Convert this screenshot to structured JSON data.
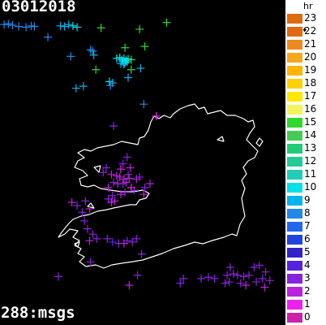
{
  "header": {
    "date": "03012018"
  },
  "footer": {
    "count": "288:msgs"
  },
  "legend": {
    "title": "hr",
    "current_hour": "22",
    "items": [
      {
        "label": "23",
        "color": "#e06a10"
      },
      {
        "label": "22",
        "color": "#e06a10"
      },
      {
        "label": "21",
        "color": "#ec8a20"
      },
      {
        "label": "20",
        "color": "#f6a81c"
      },
      {
        "label": "19",
        "color": "#ffb400"
      },
      {
        "label": "18",
        "color": "#ffd000"
      },
      {
        "label": "17",
        "color": "#ffe800"
      },
      {
        "label": "16",
        "color": "#f4f45a"
      },
      {
        "label": "15",
        "color": "#30d830"
      },
      {
        "label": "14",
        "color": "#44cc55"
      },
      {
        "label": "13",
        "color": "#22cc77"
      },
      {
        "label": "12",
        "color": "#22cc99"
      },
      {
        "label": "11",
        "color": "#22ccbb"
      },
      {
        "label": "10",
        "color": "#00e0e8"
      },
      {
        "label": "9",
        "color": "#00b4f0"
      },
      {
        "label": "8",
        "color": "#2288e8"
      },
      {
        "label": "7",
        "color": "#2266ee"
      },
      {
        "label": "6",
        "color": "#2244dd"
      },
      {
        "label": "5",
        "color": "#3322cc"
      },
      {
        "label": "4",
        "color": "#5522dd"
      },
      {
        "label": "3",
        "color": "#8822dd"
      },
      {
        "label": "2",
        "color": "#bb22dd"
      },
      {
        "label": "1",
        "color": "#ee22ee"
      },
      {
        "label": "0",
        "color": "#cc22aa"
      }
    ]
  },
  "strikes": [
    {
      "lon": -14.3,
      "lat": 55.38,
      "hour": 8
    },
    {
      "lon": -14.1,
      "lat": 55.39,
      "hour": 8
    },
    {
      "lon": -13.9,
      "lat": 55.37,
      "hour": 8
    },
    {
      "lon": -13.6,
      "lat": 55.35,
      "hour": 8
    },
    {
      "lon": -13.25,
      "lat": 55.34,
      "hour": 8
    },
    {
      "lon": -13.0,
      "lat": 55.36,
      "hour": 8
    },
    {
      "lon": -12.85,
      "lat": 55.35,
      "hour": 8
    },
    {
      "lon": -12.2,
      "lat": 55.19,
      "hour": 8
    },
    {
      "lon": -11.6,
      "lat": 55.36,
      "hour": 9
    },
    {
      "lon": -11.4,
      "lat": 55.35,
      "hour": 9
    },
    {
      "lon": -11.2,
      "lat": 55.38,
      "hour": 9
    },
    {
      "lon": -11.0,
      "lat": 55.36,
      "hour": 10
    },
    {
      "lon": -10.8,
      "lat": 55.34,
      "hour": 10
    },
    {
      "lon": -9.65,
      "lat": 55.33,
      "hour": 15
    },
    {
      "lon": -7.8,
      "lat": 55.31,
      "hour": 15
    },
    {
      "lon": -6.5,
      "lat": 55.41,
      "hour": 15
    },
    {
      "lon": -10.15,
      "lat": 55.0,
      "hour": 8
    },
    {
      "lon": -10.05,
      "lat": 54.98,
      "hour": 8
    },
    {
      "lon": -10.0,
      "lat": 54.92,
      "hour": 9
    },
    {
      "lon": -11.1,
      "lat": 54.9,
      "hour": 8
    },
    {
      "lon": -8.5,
      "lat": 55.03,
      "hour": 15
    },
    {
      "lon": -7.55,
      "lat": 55.05,
      "hour": 15
    },
    {
      "lon": -8.9,
      "lat": 54.87,
      "hour": 10
    },
    {
      "lon": -8.75,
      "lat": 54.88,
      "hour": 10
    },
    {
      "lon": -8.65,
      "lat": 54.85,
      "hour": 10
    },
    {
      "lon": -8.55,
      "lat": 54.87,
      "hour": 10
    },
    {
      "lon": -8.45,
      "lat": 54.84,
      "hour": 10
    },
    {
      "lon": -8.35,
      "lat": 54.86,
      "hour": 10
    },
    {
      "lon": -8.6,
      "lat": 54.82,
      "hour": 10
    },
    {
      "lon": -8.5,
      "lat": 54.8,
      "hour": 10
    },
    {
      "lon": -8.4,
      "lat": 54.82,
      "hour": 10
    },
    {
      "lon": -8.7,
      "lat": 54.79,
      "hour": 9
    },
    {
      "lon": -8.55,
      "lat": 54.78,
      "hour": 9
    },
    {
      "lon": -8.2,
      "lat": 54.85,
      "hour": 15
    },
    {
      "lon": -9.9,
      "lat": 54.7,
      "hour": 15
    },
    {
      "lon": -8.2,
      "lat": 54.7,
      "hour": 15
    },
    {
      "lon": -7.75,
      "lat": 54.72,
      "hour": 9
    },
    {
      "lon": -9.25,
      "lat": 54.52,
      "hour": 10
    },
    {
      "lon": -9.1,
      "lat": 54.5,
      "hour": 9
    },
    {
      "lon": -9.2,
      "lat": 54.46,
      "hour": 8
    },
    {
      "lon": -8.35,
      "lat": 54.58,
      "hour": 9
    },
    {
      "lon": -10.5,
      "lat": 54.45,
      "hour": 9
    },
    {
      "lon": -10.85,
      "lat": 54.42,
      "hour": 9
    },
    {
      "lon": -7.6,
      "lat": 54.18,
      "hour": 8
    },
    {
      "lon": -7.0,
      "lat": 54.0,
      "hour": 1
    },
    {
      "lon": -9.05,
      "lat": 53.85,
      "hour": 3
    },
    {
      "lon": -8.4,
      "lat": 53.38,
      "hour": 3
    },
    {
      "lon": -8.6,
      "lat": 53.28,
      "hour": 3
    },
    {
      "lon": -8.7,
      "lat": 53.2,
      "hour": 1
    },
    {
      "lon": -8.25,
      "lat": 53.22,
      "hour": 2
    },
    {
      "lon": -9.4,
      "lat": 53.22,
      "hour": 3
    },
    {
      "lon": -9.55,
      "lat": 53.15,
      "hour": 3
    },
    {
      "lon": -9.15,
      "lat": 53.12,
      "hour": 2
    },
    {
      "lon": -8.9,
      "lat": 53.1,
      "hour": 2
    },
    {
      "lon": -8.75,
      "lat": 53.08,
      "hour": 2
    },
    {
      "lon": -8.55,
      "lat": 53.05,
      "hour": 2
    },
    {
      "lon": -8.3,
      "lat": 53.06,
      "hour": 2
    },
    {
      "lon": -8.45,
      "lat": 53.0,
      "hour": 2
    },
    {
      "lon": -8.6,
      "lat": 52.98,
      "hour": 3
    },
    {
      "lon": -8.85,
      "lat": 52.98,
      "hour": 2
    },
    {
      "lon": -9.05,
      "lat": 53.0,
      "hour": 3
    },
    {
      "lon": -9.3,
      "lat": 52.92,
      "hour": 2
    },
    {
      "lon": -8.35,
      "lat": 53.12,
      "hour": 3
    },
    {
      "lon": -7.95,
      "lat": 53.05,
      "hour": 2
    },
    {
      "lon": -7.8,
      "lat": 53.08,
      "hour": 3
    },
    {
      "lon": -7.55,
      "lat": 52.92,
      "hour": 3
    },
    {
      "lon": -8.2,
      "lat": 52.92,
      "hour": 1
    },
    {
      "lon": -8.05,
      "lat": 52.88,
      "hour": 3
    },
    {
      "lon": -8.5,
      "lat": 52.85,
      "hour": 3
    },
    {
      "lon": -8.7,
      "lat": 52.82,
      "hour": 2
    },
    {
      "lon": -9.1,
      "lat": 52.8,
      "hour": 3
    },
    {
      "lon": -9.3,
      "lat": 52.75,
      "hour": 3
    },
    {
      "lon": -9.15,
      "lat": 52.7,
      "hour": 2
    },
    {
      "lon": -9.0,
      "lat": 52.72,
      "hour": 2
    },
    {
      "lon": -7.6,
      "lat": 52.82,
      "hour": 2
    },
    {
      "lon": -7.3,
      "lat": 52.98,
      "hour": 2
    },
    {
      "lon": -10.4,
      "lat": 52.72,
      "hour": 3
    },
    {
      "lon": -10.2,
      "lat": 52.6,
      "hour": 2
    },
    {
      "lon": -10.55,
      "lat": 52.55,
      "hour": 3
    },
    {
      "lon": -10.45,
      "lat": 52.42,
      "hour": 3
    },
    {
      "lon": -10.8,
      "lat": 52.65,
      "hour": 3
    },
    {
      "lon": -11.05,
      "lat": 52.7,
      "hour": 2
    },
    {
      "lon": -10.3,
      "lat": 52.3,
      "hour": 3
    },
    {
      "lon": -10.05,
      "lat": 52.22,
      "hour": 3
    },
    {
      "lon": -9.85,
      "lat": 52.15,
      "hour": 3
    },
    {
      "lon": -10.2,
      "lat": 52.12,
      "hour": 2
    },
    {
      "lon": -9.35,
      "lat": 52.15,
      "hour": 3
    },
    {
      "lon": -9.1,
      "lat": 52.1,
      "hour": 4
    },
    {
      "lon": -8.8,
      "lat": 52.08,
      "hour": 3
    },
    {
      "lon": -8.55,
      "lat": 52.08,
      "hour": 2
    },
    {
      "lon": -8.4,
      "lat": 52.12,
      "hour": 3
    },
    {
      "lon": -8.15,
      "lat": 52.1,
      "hour": 3
    },
    {
      "lon": -7.95,
      "lat": 52.15,
      "hour": 3
    },
    {
      "lon": -10.15,
      "lat": 51.8,
      "hour": 3
    },
    {
      "lon": -7.7,
      "lat": 51.92,
      "hour": 3
    },
    {
      "lon": -11.7,
      "lat": 51.58,
      "hour": 3
    },
    {
      "lon": -7.9,
      "lat": 51.6,
      "hour": 3
    },
    {
      "lon": -8.3,
      "lat": 51.45,
      "hour": 2
    },
    {
      "lon": -5.7,
      "lat": 51.55,
      "hour": 3
    },
    {
      "lon": -5.85,
      "lat": 51.48,
      "hour": 3
    },
    {
      "lon": -4.85,
      "lat": 51.55,
      "hour": 3
    },
    {
      "lon": -4.5,
      "lat": 51.57,
      "hour": 3
    },
    {
      "lon": -4.2,
      "lat": 51.55,
      "hour": 3
    },
    {
      "lon": -3.45,
      "lat": 51.72,
      "hour": 3
    },
    {
      "lon": -3.6,
      "lat": 51.6,
      "hour": 3
    },
    {
      "lon": -3.3,
      "lat": 51.62,
      "hour": 3
    },
    {
      "lon": -3.1,
      "lat": 51.6,
      "hour": 3
    },
    {
      "lon": -2.8,
      "lat": 51.58,
      "hour": 3
    },
    {
      "lon": -2.55,
      "lat": 51.6,
      "hour": 3
    },
    {
      "lon": -2.3,
      "lat": 51.72,
      "hour": 3
    },
    {
      "lon": -2.05,
      "lat": 51.75,
      "hour": 3
    },
    {
      "lon": -1.75,
      "lat": 51.65,
      "hour": 3
    },
    {
      "lon": -1.9,
      "lat": 51.55,
      "hour": 3
    },
    {
      "lon": -2.2,
      "lat": 51.5,
      "hour": 3
    },
    {
      "lon": -1.8,
      "lat": 51.42,
      "hour": 2
    },
    {
      "lon": -1.55,
      "lat": 51.52,
      "hour": 3
    },
    {
      "lon": -3.5,
      "lat": 51.5,
      "hour": 3
    },
    {
      "lon": -3.7,
      "lat": 51.48,
      "hour": 3
    },
    {
      "lon": -2.7,
      "lat": 51.45,
      "hour": 2
    },
    {
      "lon": -2.95,
      "lat": 51.48,
      "hour": 3
    }
  ]
}
